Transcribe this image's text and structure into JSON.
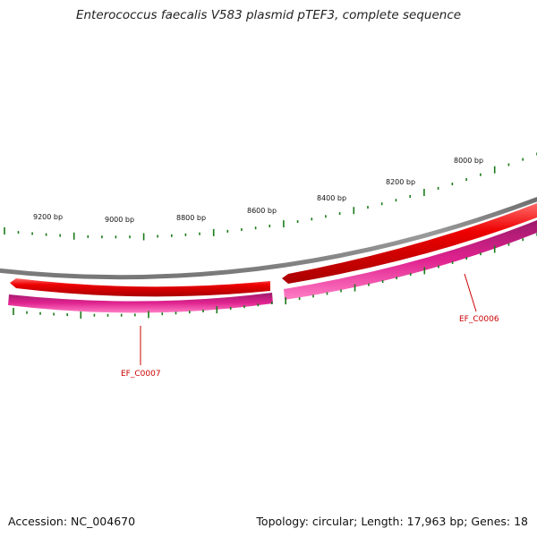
{
  "title": "Enterococcus faecalis V583 plasmid pTEF3, complete sequence",
  "footer": {
    "accession": "Accession: NC_004670",
    "summary": "Topology: circular; Length: 17,963 bp; Genes: 18"
  },
  "colors": {
    "backbone": "#888888",
    "forward_gene": "#ee0000",
    "reverse_gene": "#dd1e8c",
    "tick": "#1a7a1a",
    "gene_label": "#cc0000"
  },
  "scale_labels": [
    "9200 bp",
    "9000 bp",
    "8800 bp",
    "8600 bp",
    "8400 bp",
    "8200 bp",
    "8000 bp"
  ],
  "genes": [
    {
      "name": "EF_C0007",
      "strand": "reverse"
    },
    {
      "name": "EF_C0006",
      "strand": "reverse"
    }
  ]
}
